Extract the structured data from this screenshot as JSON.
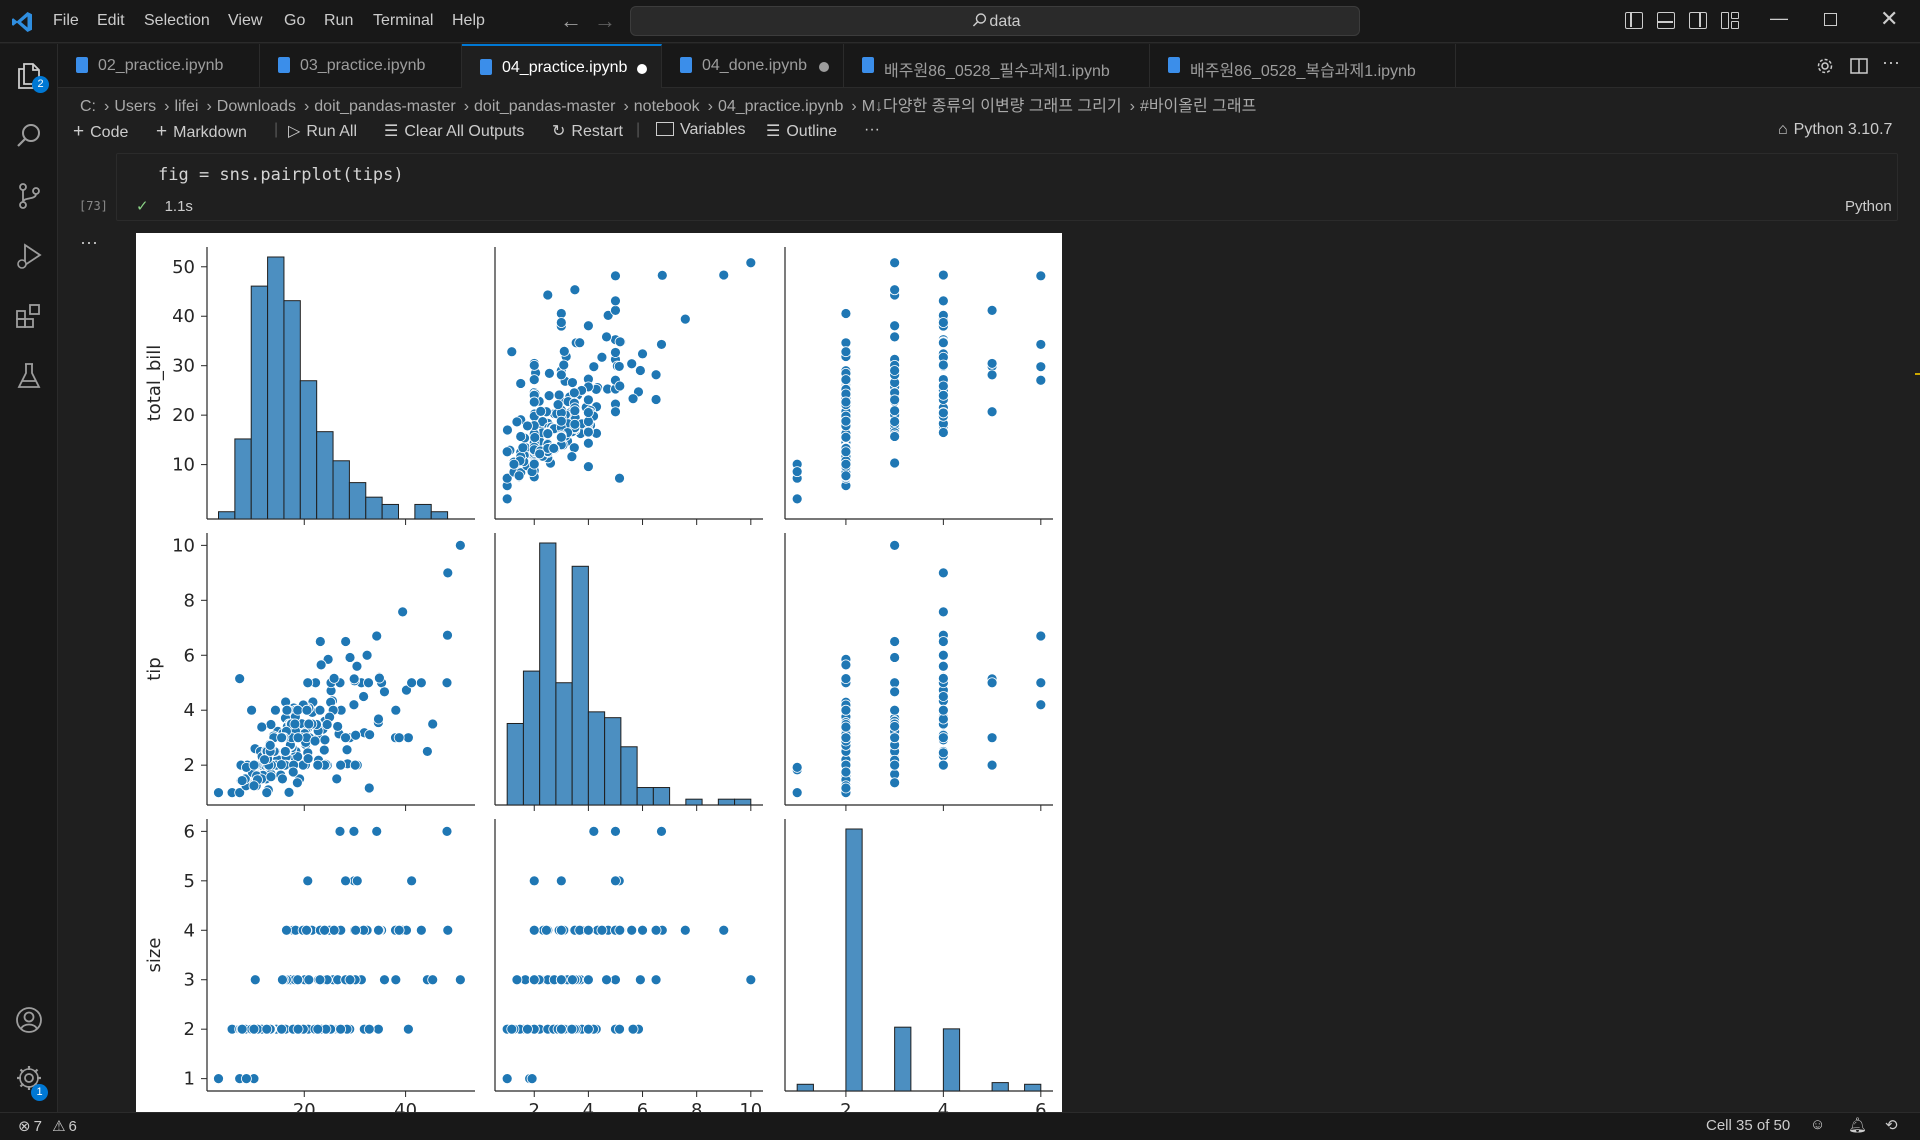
{
  "titlebar": {
    "menus": [
      "File",
      "Edit",
      "Selection",
      "View",
      "Go",
      "Run",
      "Terminal",
      "Help"
    ],
    "menu_underline": [
      "F",
      "E",
      "S",
      "V",
      "G",
      "R",
      "T",
      "H"
    ],
    "search_text": "data",
    "search_icon": "search-icon"
  },
  "activity_bar": {
    "items": [
      "explorer-icon",
      "search-icon",
      "source-control-icon",
      "run-debug-icon",
      "extensions-icon",
      "testing-icon"
    ],
    "explorer_badge": "2",
    "settings_badge": "1"
  },
  "tabs": [
    {
      "label": "02_practice.ipynb",
      "active": false,
      "dirty": false
    },
    {
      "label": "03_practice.ipynb",
      "active": false,
      "dirty": false
    },
    {
      "label": "04_practice.ipynb",
      "active": true,
      "dirty": true
    },
    {
      "label": "04_done.ipynb",
      "active": false,
      "dirty": true
    },
    {
      "label": "배주원86_0528_필수과제1.ipynb",
      "active": false,
      "dirty": false
    },
    {
      "label": "배주원86_0528_복습과제1.ipynb",
      "active": false,
      "dirty": false
    }
  ],
  "breadcrumb": [
    "C:",
    "Users",
    "lifei",
    "Downloads",
    "doit_pandas-master",
    "doit_pandas-master",
    "notebook",
    "04_practice.ipynb",
    "M↓다양한 종류의 이변량 그래프 그리기",
    "#바이올린 그래프"
  ],
  "toolbar": {
    "code": "Code",
    "markdown": "Markdown",
    "run_all": "Run All",
    "clear_outputs": "Clear All Outputs",
    "restart": "Restart",
    "variables": "Variables",
    "outline": "Outline",
    "more": "···",
    "kernel": "Python 3.10.7"
  },
  "cell": {
    "code": "fig = sns.pairplot(tips)",
    "exec_count": "[73]",
    "exec_time": "1.1s",
    "language": "Python",
    "output_more": "···"
  },
  "status": {
    "errors": "7",
    "warnings": "6",
    "cell_position": "Cell 35 of 50"
  },
  "colors": {
    "accent": "#0078d4",
    "plot_blue": "#1f77b4",
    "hist_blue": "#4c8fc1"
  },
  "chart_data": {
    "type": "pairplot",
    "variables": [
      "total_bill",
      "tip",
      "size"
    ],
    "axis_labels": {
      "total_bill": "total_bill",
      "tip": "tip",
      "size": "size"
    },
    "ticks": {
      "total_bill_y": [
        "10",
        "20",
        "30",
        "40",
        "50"
      ],
      "tip_y": [
        "2",
        "4",
        "6",
        "8",
        "10"
      ],
      "size_y": [
        "1",
        "2",
        "3",
        "4",
        "5",
        "6"
      ],
      "total_bill_x": [
        "20",
        "40"
      ],
      "tip_x": [
        "2",
        "4",
        "6",
        "8",
        "10"
      ],
      "size_x": [
        "2",
        "4",
        "6"
      ]
    },
    "ranges": {
      "total_bill": [
        3,
        51
      ],
      "tip": [
        1,
        10
      ],
      "size": [
        1,
        6
      ]
    },
    "hist_total_bill": {
      "bin_edges": [
        3.07,
        6.3,
        9.53,
        12.76,
        15.99,
        19.22,
        22.45,
        25.68,
        28.91,
        32.14,
        35.37,
        38.6,
        41.83,
        45.06,
        48.29,
        51.52
      ],
      "counts": [
        1,
        11,
        32,
        36,
        30,
        19,
        12,
        8,
        5,
        3,
        2,
        0,
        2,
        1,
        0,
        0
      ]
    },
    "hist_tip": {
      "bin_edges": [
        1.0,
        1.6,
        2.2,
        2.8,
        3.4,
        4.0,
        4.6,
        5.2,
        5.8,
        6.4,
        7.0,
        7.6,
        8.2,
        8.8,
        9.4,
        10.0
      ],
      "counts": [
        14,
        23,
        45,
        21,
        41,
        16,
        15,
        10,
        3,
        3,
        0,
        1,
        0,
        1,
        1
      ]
    },
    "hist_size": {
      "bin_edges": [
        1,
        1.3333,
        1.6667,
        2,
        2.3333,
        2.6667,
        3,
        3.3333,
        3.6667,
        4,
        4.3333,
        4.6667,
        5,
        5.3333,
        5.6667,
        6
      ],
      "counts": [
        4,
        0,
        0,
        156,
        0,
        0,
        38,
        0,
        0,
        37,
        0,
        0,
        5,
        0,
        4
      ]
    },
    "points": [
      [
        16.99,
        1.01,
        2
      ],
      [
        10.34,
        1.66,
        3
      ],
      [
        21.01,
        3.5,
        3
      ],
      [
        23.68,
        3.31,
        2
      ],
      [
        24.59,
        3.61,
        4
      ],
      [
        25.29,
        4.71,
        4
      ],
      [
        8.77,
        2.0,
        2
      ],
      [
        26.88,
        3.12,
        4
      ],
      [
        15.04,
        1.96,
        2
      ],
      [
        14.78,
        3.23,
        2
      ],
      [
        10.27,
        1.71,
        2
      ],
      [
        35.26,
        5.0,
        4
      ],
      [
        15.42,
        1.57,
        2
      ],
      [
        18.43,
        3.0,
        4
      ],
      [
        14.83,
        3.02,
        2
      ],
      [
        21.58,
        3.92,
        2
      ],
      [
        10.33,
        1.67,
        3
      ],
      [
        16.29,
        3.71,
        3
      ],
      [
        16.97,
        3.5,
        3
      ],
      [
        20.65,
        3.35,
        3
      ],
      [
        17.92,
        4.08,
        2
      ],
      [
        20.29,
        2.75,
        2
      ],
      [
        15.77,
        2.23,
        2
      ],
      [
        39.42,
        7.58,
        4
      ],
      [
        19.82,
        3.18,
        2
      ],
      [
        17.81,
        2.34,
        4
      ],
      [
        13.37,
        2.0,
        2
      ],
      [
        12.69,
        2.0,
        2
      ],
      [
        21.7,
        4.3,
        2
      ],
      [
        19.65,
        3.0,
        2
      ],
      [
        9.55,
        1.45,
        2
      ],
      [
        18.35,
        2.5,
        4
      ],
      [
        15.06,
        3.0,
        2
      ],
      [
        20.69,
        2.45,
        4
      ],
      [
        17.78,
        3.27,
        2
      ],
      [
        24.06,
        3.6,
        3
      ],
      [
        16.31,
        2.0,
        3
      ],
      [
        16.93,
        3.07,
        3
      ],
      [
        18.69,
        2.31,
        3
      ],
      [
        31.27,
        5.0,
        3
      ],
      [
        16.04,
        2.24,
        3
      ],
      [
        17.46,
        2.54,
        2
      ],
      [
        13.94,
        3.06,
        2
      ],
      [
        9.68,
        1.32,
        2
      ],
      [
        30.4,
        5.6,
        4
      ],
      [
        18.29,
        3.0,
        2
      ],
      [
        22.23,
        5.0,
        2
      ],
      [
        32.4,
        6.0,
        4
      ],
      [
        28.55,
        2.05,
        3
      ],
      [
        18.04,
        3.0,
        2
      ],
      [
        12.54,
        2.5,
        2
      ],
      [
        10.29,
        2.6,
        2
      ],
      [
        34.81,
        5.2,
        4
      ],
      [
        9.94,
        1.56,
        2
      ],
      [
        25.56,
        4.34,
        4
      ],
      [
        19.49,
        3.51,
        2
      ],
      [
        38.01,
        3.0,
        4
      ],
      [
        26.41,
        1.5,
        2
      ],
      [
        11.24,
        1.76,
        2
      ],
      [
        48.27,
        6.73,
        4
      ],
      [
        20.29,
        3.21,
        2
      ],
      [
        13.81,
        2.0,
        2
      ],
      [
        11.02,
        1.98,
        2
      ],
      [
        18.29,
        3.76,
        4
      ],
      [
        17.59,
        2.64,
        3
      ],
      [
        20.08,
        3.15,
        3
      ],
      [
        16.45,
        2.47,
        2
      ],
      [
        3.07,
        1.0,
        1
      ],
      [
        20.23,
        2.01,
        2
      ],
      [
        15.01,
        2.09,
        2
      ],
      [
        12.02,
        1.97,
        2
      ],
      [
        17.07,
        3.0,
        3
      ],
      [
        26.86,
        3.14,
        2
      ],
      [
        25.28,
        5.0,
        2
      ],
      [
        14.73,
        2.2,
        2
      ],
      [
        10.51,
        1.25,
        2
      ],
      [
        17.92,
        3.08,
        2
      ],
      [
        27.2,
        4.0,
        4
      ],
      [
        22.76,
        3.0,
        2
      ],
      [
        17.29,
        2.71,
        2
      ],
      [
        19.44,
        3.0,
        2
      ],
      [
        16.66,
        3.4,
        2
      ],
      [
        10.07,
        1.83,
        1
      ],
      [
        32.68,
        5.0,
        2
      ],
      [
        15.98,
        2.03,
        2
      ],
      [
        34.83,
        5.17,
        4
      ],
      [
        13.03,
        2.0,
        2
      ],
      [
        18.28,
        4.0,
        2
      ],
      [
        24.71,
        5.85,
        2
      ],
      [
        21.16,
        3.0,
        2
      ],
      [
        28.97,
        3.0,
        2
      ],
      [
        22.49,
        3.5,
        2
      ],
      [
        5.75,
        1.0,
        2
      ],
      [
        16.32,
        4.3,
        2
      ],
      [
        22.75,
        3.25,
        2
      ],
      [
        40.17,
        4.73,
        4
      ],
      [
        27.28,
        4.0,
        2
      ],
      [
        12.03,
        1.5,
        2
      ],
      [
        21.01,
        3.0,
        2
      ],
      [
        12.46,
        1.5,
        2
      ],
      [
        11.35,
        2.5,
        2
      ],
      [
        15.38,
        3.0,
        2
      ],
      [
        44.3,
        2.5,
        3
      ],
      [
        22.42,
        3.48,
        2
      ],
      [
        20.92,
        4.08,
        2
      ],
      [
        15.36,
        1.64,
        2
      ],
      [
        20.49,
        4.06,
        2
      ],
      [
        25.21,
        4.29,
        2
      ],
      [
        18.24,
        3.76,
        2
      ],
      [
        14.31,
        4.0,
        2
      ],
      [
        14.0,
        3.0,
        2
      ],
      [
        7.25,
        1.0,
        1
      ],
      [
        38.07,
        4.0,
        3
      ],
      [
        23.95,
        2.55,
        2
      ],
      [
        25.71,
        4.0,
        3
      ],
      [
        17.31,
        3.5,
        2
      ],
      [
        29.93,
        5.07,
        4
      ],
      [
        10.65,
        1.5,
        2
      ],
      [
        12.43,
        1.8,
        2
      ],
      [
        24.08,
        2.92,
        4
      ],
      [
        11.69,
        2.31,
        2
      ],
      [
        13.42,
        1.68,
        2
      ],
      [
        14.26,
        2.5,
        2
      ],
      [
        15.95,
        2.0,
        2
      ],
      [
        12.48,
        2.52,
        2
      ],
      [
        29.8,
        4.2,
        6
      ],
      [
        8.52,
        1.48,
        2
      ],
      [
        14.52,
        2.0,
        2
      ],
      [
        11.38,
        2.0,
        2
      ],
      [
        22.82,
        2.18,
        3
      ],
      [
        19.08,
        1.5,
        2
      ],
      [
        20.27,
        2.83,
        2
      ],
      [
        11.17,
        1.5,
        2
      ],
      [
        12.26,
        2.0,
        2
      ],
      [
        18.26,
        3.25,
        2
      ],
      [
        8.51,
        1.25,
        2
      ],
      [
        10.33,
        2.0,
        2
      ],
      [
        14.15,
        2.0,
        2
      ],
      [
        16.0,
        2.0,
        2
      ],
      [
        13.16,
        2.75,
        2
      ],
      [
        17.47,
        3.5,
        2
      ],
      [
        34.3,
        6.7,
        6
      ],
      [
        41.19,
        5.0,
        5
      ],
      [
        27.05,
        5.0,
        6
      ],
      [
        16.43,
        2.3,
        2
      ],
      [
        8.35,
        1.5,
        2
      ],
      [
        18.64,
        1.36,
        3
      ],
      [
        11.87,
        1.63,
        2
      ],
      [
        9.78,
        1.73,
        2
      ],
      [
        7.51,
        2.0,
        2
      ],
      [
        14.07,
        2.5,
        2
      ],
      [
        13.13,
        2.0,
        2
      ],
      [
        17.26,
        2.74,
        3
      ],
      [
        24.55,
        2.0,
        4
      ],
      [
        19.77,
        2.0,
        4
      ],
      [
        29.85,
        5.14,
        5
      ],
      [
        48.17,
        5.0,
        6
      ],
      [
        25.0,
        3.75,
        4
      ],
      [
        13.39,
        2.61,
        2
      ],
      [
        16.49,
        2.0,
        4
      ],
      [
        21.5,
        3.5,
        4
      ],
      [
        12.66,
        2.5,
        2
      ],
      [
        16.21,
        2.0,
        3
      ],
      [
        13.81,
        2.0,
        2
      ],
      [
        17.51,
        3.0,
        2
      ],
      [
        24.52,
        3.48,
        3
      ],
      [
        20.76,
        2.24,
        2
      ],
      [
        31.71,
        4.5,
        4
      ],
      [
        10.59,
        1.61,
        2
      ],
      [
        10.63,
        2.0,
        2
      ],
      [
        50.81,
        10.0,
        3
      ],
      [
        15.81,
        3.16,
        2
      ],
      [
        7.25,
        5.15,
        2
      ],
      [
        31.85,
        3.18,
        2
      ],
      [
        16.82,
        4.0,
        2
      ],
      [
        32.9,
        3.11,
        2
      ],
      [
        17.89,
        2.0,
        2
      ],
      [
        14.48,
        2.0,
        2
      ],
      [
        9.6,
        4.0,
        2
      ],
      [
        34.63,
        3.55,
        2
      ],
      [
        34.65,
        3.68,
        4
      ],
      [
        23.33,
        5.65,
        2
      ],
      [
        45.35,
        3.5,
        3
      ],
      [
        23.17,
        6.5,
        4
      ],
      [
        40.55,
        3.0,
        2
      ],
      [
        20.69,
        5.0,
        5
      ],
      [
        20.9,
        3.5,
        3
      ],
      [
        30.46,
        2.0,
        5
      ],
      [
        18.15,
        3.5,
        3
      ],
      [
        23.1,
        4.0,
        3
      ],
      [
        15.69,
        1.5,
        2
      ],
      [
        19.81,
        4.19,
        2
      ],
      [
        28.44,
        2.56,
        2
      ],
      [
        15.48,
        2.02,
        2
      ],
      [
        16.58,
        4.0,
        2
      ],
      [
        7.56,
        1.44,
        2
      ],
      [
        10.34,
        2.0,
        2
      ],
      [
        43.11,
        5.0,
        4
      ],
      [
        13.0,
        2.0,
        2
      ],
      [
        13.51,
        2.0,
        2
      ],
      [
        18.71,
        4.0,
        3
      ],
      [
        12.74,
        2.01,
        2
      ],
      [
        13.0,
        2.0,
        2
      ],
      [
        16.4,
        2.5,
        2
      ],
      [
        20.53,
        4.0,
        4
      ],
      [
        16.47,
        3.23,
        3
      ],
      [
        26.59,
        3.41,
        3
      ],
      [
        38.73,
        3.0,
        4
      ],
      [
        24.27,
        2.03,
        2
      ],
      [
        12.76,
        2.23,
        2
      ],
      [
        30.06,
        2.0,
        3
      ],
      [
        25.89,
        5.16,
        4
      ],
      [
        48.33,
        9.0,
        4
      ],
      [
        13.27,
        2.5,
        2
      ],
      [
        28.17,
        6.5,
        3
      ],
      [
        12.9,
        1.1,
        2
      ],
      [
        28.15,
        3.0,
        5
      ],
      [
        11.59,
        1.5,
        2
      ],
      [
        7.74,
        1.44,
        2
      ],
      [
        30.14,
        3.09,
        4
      ],
      [
        12.16,
        2.2,
        2
      ],
      [
        13.42,
        3.48,
        2
      ],
      [
        8.58,
        1.92,
        1
      ],
      [
        15.98,
        3.0,
        3
      ],
      [
        13.42,
        1.58,
        2
      ],
      [
        16.27,
        2.5,
        2
      ],
      [
        10.09,
        2.0,
        2
      ],
      [
        20.45,
        3.0,
        4
      ],
      [
        13.28,
        2.72,
        2
      ],
      [
        22.12,
        2.88,
        2
      ],
      [
        24.01,
        2.0,
        4
      ],
      [
        15.69,
        3.0,
        3
      ],
      [
        11.61,
        3.39,
        2
      ],
      [
        10.77,
        1.47,
        2
      ],
      [
        15.53,
        3.0,
        2
      ],
      [
        10.07,
        1.25,
        2
      ],
      [
        12.6,
        1.0,
        2
      ],
      [
        32.83,
        1.17,
        2
      ],
      [
        35.83,
        4.67,
        3
      ],
      [
        29.03,
        5.92,
        3
      ],
      [
        27.18,
        2.0,
        2
      ],
      [
        22.67,
        2.0,
        2
      ],
      [
        17.82,
        1.75,
        2
      ],
      [
        18.78,
        3.0,
        2
      ]
    ]
  }
}
